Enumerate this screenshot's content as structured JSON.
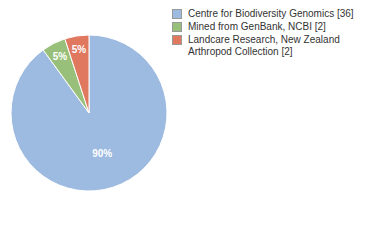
{
  "chart_data": {
    "type": "pie",
    "categories": [
      "Centre for Biodiversity Genomics [36]",
      "Mined from GenBank, NCBI [2]",
      "Landcare Research, New Zealand Arthropod Collection [2]"
    ],
    "values": [
      90,
      5,
      5
    ],
    "value_labels": [
      "90%",
      "5%",
      "5%"
    ],
    "colors": [
      "#9dbae0",
      "#98c07a",
      "#e0775f"
    ],
    "data_labels": true,
    "legend": "upper right"
  }
}
